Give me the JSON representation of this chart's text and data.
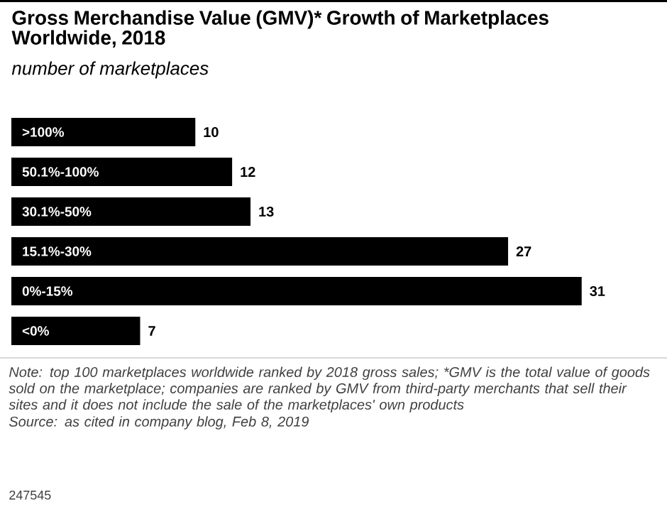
{
  "chart_data": {
    "type": "bar",
    "orientation": "horizontal",
    "title": "Gross Merchandise Value (GMV)* Growth of Marketplaces Worldwide, 2018",
    "subtitle": "number of marketplaces",
    "categories": [
      ">100%",
      "50.1%-100%",
      "30.1%-50%",
      "15.1%-30%",
      "0%-15%",
      "<0%"
    ],
    "values": [
      10,
      12,
      13,
      27,
      31,
      7
    ],
    "color": "#000000",
    "data_labels": true,
    "annotations": [
      "Note: top 100 marketplaces worldwide ranked by 2018 gross sales; *GMV is the total value of goods sold on the marketplace; companies are ranked by GMV from third-party merchants that sell their sites and it does not include the sale of the marketplaces' own products",
      "Source: as cited in company blog, Feb 8, 2019",
      "247545"
    ]
  }
}
